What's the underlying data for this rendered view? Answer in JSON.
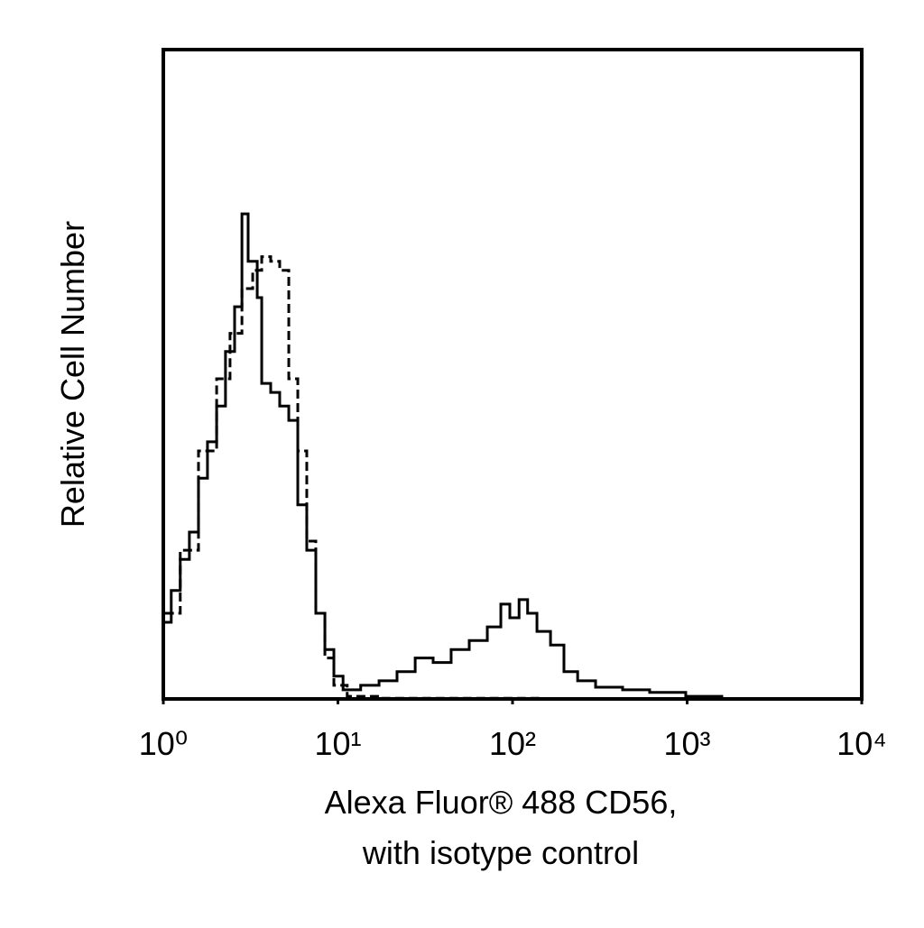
{
  "chart_data": {
    "type": "histogram-line",
    "xlabel": [
      "Alexa Fluor® 488 CD56,",
      "with isotype control"
    ],
    "ylabel": "Relative Cell Number",
    "xlim": [
      1,
      10000
    ],
    "xlog": true,
    "xticks": [
      {
        "value": 1,
        "label": "10⁰"
      },
      {
        "value": 10,
        "label": "10¹"
      },
      {
        "value": 100,
        "label": "10²"
      },
      {
        "value": 1000,
        "label": "10³"
      },
      {
        "value": 10000,
        "label": "10⁴"
      }
    ],
    "ylim": [
      0,
      100
    ],
    "series": [
      {
        "color": "#000000",
        "style": "solid",
        "x": [
          1.02,
          1.11,
          1.25,
          1.41,
          1.59,
          1.79,
          2.02,
          2.27,
          2.56,
          2.82,
          3.06,
          3.45,
          3.66,
          4.12,
          4.64,
          5.23,
          5.89,
          6.63,
          7.47,
          8.42,
          9.48,
          10.7,
          13.5,
          17.2,
          21.8,
          27.7,
          35.1,
          44.5,
          56.5,
          71.7,
          85.7,
          96.5,
          109,
          122,
          138,
          165,
          197,
          236,
          299,
          427,
          610,
          982,
          1580,
          10000
        ],
        "values": [
          11.8,
          16.7,
          21.5,
          25.7,
          34.0,
          39.6,
          45.1,
          53.5,
          60.4,
          74.7,
          67.4,
          61.8,
          48.6,
          47.2,
          45.1,
          42.9,
          29.9,
          22.9,
          13.2,
          7.6,
          3.5,
          1.4,
          2.1,
          2.8,
          4.2,
          6.3,
          5.6,
          7.6,
          9.0,
          11.1,
          14.6,
          12.5,
          15.3,
          13.2,
          10.4,
          8.3,
          4.2,
          2.8,
          1.8,
          1.4,
          1.0,
          0.4,
          0,
          0
        ]
      },
      {
        "color": "#000000",
        "style": "dashed",
        "x": [
          1.02,
          1.25,
          1.59,
          2.02,
          2.41,
          2.82,
          3.25,
          3.66,
          4.12,
          4.64,
          5.23,
          5.89,
          6.63,
          7.47,
          8.42,
          9.48,
          11.3,
          17.2,
          146,
          10000
        ],
        "values": [
          13.2,
          22.9,
          38.2,
          49.3,
          56.3,
          63.2,
          66.0,
          68.1,
          67.4,
          66.0,
          49.3,
          38.2,
          24.3,
          13.2,
          6.3,
          2.1,
          0.4,
          0.1,
          0,
          0
        ]
      }
    ]
  }
}
